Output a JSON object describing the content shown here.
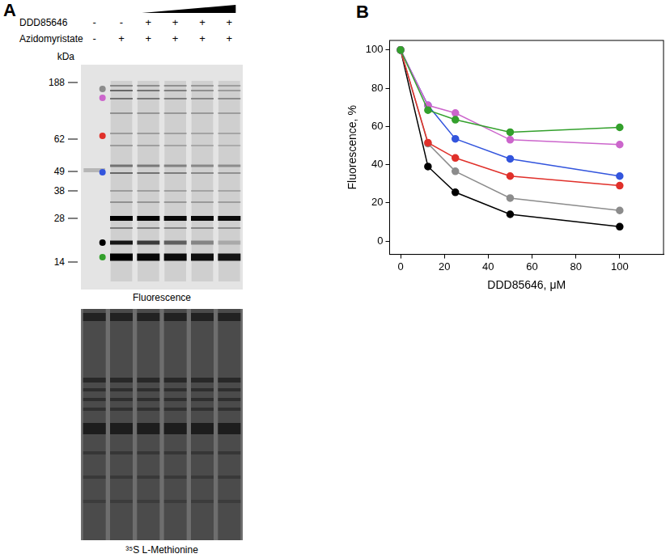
{
  "panel_a": {
    "label": "A",
    "rows": [
      {
        "label": "DDD85646",
        "lanes": [
          "-",
          "-",
          "+",
          "+",
          "+",
          "+"
        ]
      },
      {
        "label": "Azidomyristate",
        "lanes": [
          "-",
          "+",
          "+",
          "+",
          "+",
          "+"
        ]
      }
    ],
    "marker_unit": "kDa",
    "markers": [
      188,
      62,
      49,
      38,
      28,
      14
    ],
    "gels": [
      "Fluorescence",
      "³⁵S L-Methionine"
    ]
  },
  "chart_data": {
    "type": "line",
    "panel_label": "B",
    "x_label": "DDD85646, μM",
    "y_label": "Fluorescence, %",
    "x": [
      0,
      12.5,
      25,
      50,
      100
    ],
    "series": [
      {
        "color": "#33a02c",
        "values": [
          100,
          68.5,
          63.5,
          57,
          59.5
        ]
      },
      {
        "color": "#cc66cc",
        "values": [
          100,
          71,
          67,
          53,
          50.5
        ]
      },
      {
        "color": "#3355dd",
        "values": [
          100,
          71,
          53.5,
          43,
          34
        ]
      },
      {
        "color": "#e0302a",
        "values": [
          100,
          51.5,
          43.5,
          34,
          29
        ]
      },
      {
        "color": "#8c8c8c",
        "values": [
          100,
          51,
          36.5,
          22.5,
          16
        ]
      },
      {
        "color": "#000000",
        "values": [
          100,
          39,
          25.5,
          14,
          7.5
        ]
      }
    ],
    "xlim": [
      -5,
      120
    ],
    "ylim": [
      -7,
      105
    ],
    "xticks": [
      0,
      20,
      40,
      60,
      80,
      100
    ],
    "yticks": [
      0,
      20,
      40,
      60,
      80,
      100
    ],
    "grid": false,
    "marker": "circle",
    "line_style": "solid"
  }
}
